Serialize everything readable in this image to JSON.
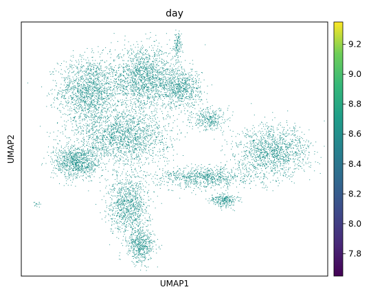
{
  "chart_data": {
    "type": "scatter",
    "title": "day",
    "xlabel": "UMAP1",
    "ylabel": "UMAP2",
    "x_ticks_shown": false,
    "y_ticks_shown": false,
    "grid": false,
    "point_color_value": 8.5,
    "point_color": "#21918c",
    "colorbar": {
      "colormap": "viridis",
      "range": [
        7.65,
        9.35
      ],
      "ticks": [
        7.8,
        8.0,
        8.2,
        8.4,
        8.6,
        8.8,
        9.0,
        9.2
      ],
      "tick_labels": [
        "7.8",
        "8.0",
        "8.2",
        "8.4",
        "8.6",
        "8.8",
        "9.0",
        "9.2"
      ],
      "placement": "right"
    },
    "clusters": [
      {
        "name": "upper-left lobe",
        "cx": 0.22,
        "cy": 0.73,
        "rx": 0.09,
        "ry": 0.12,
        "n": 1500
      },
      {
        "name": "upper-center lobe",
        "cx": 0.4,
        "cy": 0.78,
        "rx": 0.1,
        "ry": 0.11,
        "n": 1600
      },
      {
        "name": "upper-right lobe",
        "cx": 0.52,
        "cy": 0.74,
        "rx": 0.06,
        "ry": 0.07,
        "n": 700
      },
      {
        "name": "center band",
        "cx": 0.33,
        "cy": 0.55,
        "rx": 0.14,
        "ry": 0.1,
        "n": 1700
      },
      {
        "name": "left arm",
        "cx": 0.18,
        "cy": 0.45,
        "rx": 0.07,
        "ry": 0.06,
        "n": 900
      },
      {
        "name": "lower lobe",
        "cx": 0.35,
        "cy": 0.28,
        "rx": 0.06,
        "ry": 0.11,
        "n": 1000
      },
      {
        "name": "lower tip",
        "cx": 0.39,
        "cy": 0.12,
        "rx": 0.04,
        "ry": 0.06,
        "n": 500
      },
      {
        "name": "right lobe",
        "cx": 0.82,
        "cy": 0.49,
        "rx": 0.11,
        "ry": 0.09,
        "n": 1300
      },
      {
        "name": "middle bridge",
        "cx": 0.6,
        "cy": 0.39,
        "rx": 0.14,
        "ry": 0.04,
        "n": 800
      },
      {
        "name": "small right-lower blob",
        "cx": 0.66,
        "cy": 0.3,
        "rx": 0.04,
        "ry": 0.025,
        "n": 250
      },
      {
        "name": "small upper island",
        "cx": 0.51,
        "cy": 0.91,
        "rx": 0.012,
        "ry": 0.045,
        "n": 120
      },
      {
        "name": "mid-right patch",
        "cx": 0.61,
        "cy": 0.62,
        "rx": 0.05,
        "ry": 0.04,
        "n": 300
      },
      {
        "name": "far-left speck",
        "cx": 0.05,
        "cy": 0.28,
        "rx": 0.01,
        "ry": 0.01,
        "n": 15
      }
    ]
  }
}
